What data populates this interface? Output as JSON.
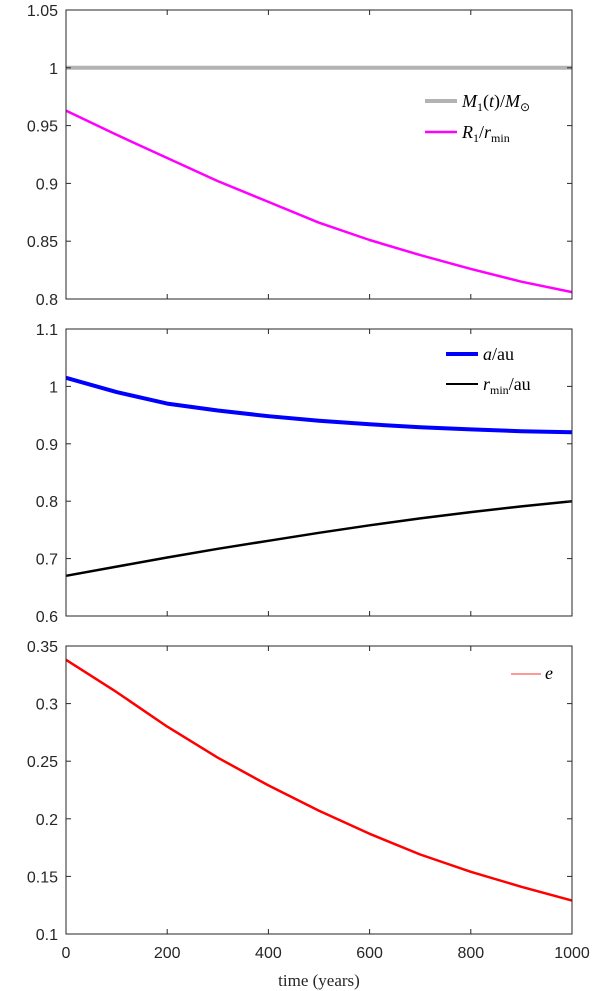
{
  "chart_data": [
    {
      "type": "line",
      "xlim": [
        0,
        1000
      ],
      "ylim": [
        0.8,
        1.05
      ],
      "yticks": [
        "0.8",
        "0.85",
        "0.9",
        "0.95",
        "1",
        "1.05"
      ],
      "ytick_values": [
        0.8,
        0.85,
        0.9,
        0.95,
        1.0,
        1.05
      ],
      "xticks": [],
      "grid": false,
      "legend": "right",
      "series": [
        {
          "name": "M1(t)/M⊙",
          "color": "#b3b3b3",
          "width": 4,
          "x": [
            0,
            1000
          ],
          "y": [
            1.0,
            1.0
          ]
        },
        {
          "name": "R1/rmin",
          "color": "#ff00ff",
          "width": 2.5,
          "x": [
            0,
            100,
            200,
            300,
            400,
            500,
            600,
            700,
            800,
            900,
            1000
          ],
          "y": [
            0.963,
            0.942,
            0.922,
            0.902,
            0.884,
            0.866,
            0.851,
            0.838,
            0.826,
            0.815,
            0.806
          ]
        }
      ]
    },
    {
      "type": "line",
      "xlim": [
        0,
        1000
      ],
      "ylim": [
        0.6,
        1.1
      ],
      "yticks": [
        "0.6",
        "0.7",
        "0.8",
        "0.9",
        "1",
        "1.1"
      ],
      "ytick_values": [
        0.6,
        0.7,
        0.8,
        0.9,
        1.0,
        1.1
      ],
      "xticks": [],
      "grid": false,
      "legend": "top-right",
      "series": [
        {
          "name": "a/au",
          "color": "#0000ff",
          "width": 4,
          "x": [
            0,
            100,
            200,
            300,
            400,
            500,
            600,
            700,
            800,
            900,
            1000
          ],
          "y": [
            1.015,
            0.99,
            0.97,
            0.958,
            0.948,
            0.94,
            0.934,
            0.929,
            0.925,
            0.922,
            0.92
          ]
        },
        {
          "name": "rmin/au",
          "color": "#000000",
          "width": 2.5,
          "x": [
            0,
            100,
            200,
            300,
            400,
            500,
            600,
            700,
            800,
            900,
            1000
          ],
          "y": [
            0.67,
            0.686,
            0.702,
            0.717,
            0.731,
            0.745,
            0.758,
            0.77,
            0.781,
            0.791,
            0.8
          ]
        }
      ]
    },
    {
      "type": "line",
      "xlim": [
        0,
        1000
      ],
      "ylim": [
        0.1,
        0.35
      ],
      "yticks": [
        "0.1",
        "0.15",
        "0.2",
        "0.25",
        "0.3",
        "0.35"
      ],
      "ytick_values": [
        0.1,
        0.15,
        0.2,
        0.25,
        0.3,
        0.35
      ],
      "xticks": [
        "0",
        "200",
        "400",
        "600",
        "800",
        "1000"
      ],
      "xtick_values": [
        0,
        200,
        400,
        600,
        800,
        1000
      ],
      "xlabel": "time (years)",
      "grid": false,
      "legend": "top-right",
      "series": [
        {
          "name": "e",
          "color": "#ff0000",
          "width": 2.5,
          "legend_color": "#ff9999",
          "x": [
            0,
            100,
            200,
            300,
            400,
            500,
            600,
            700,
            800,
            900,
            1000
          ],
          "y": [
            0.338,
            0.31,
            0.28,
            0.253,
            0.229,
            0.207,
            0.187,
            0.169,
            0.154,
            0.141,
            0.129
          ]
        }
      ]
    }
  ]
}
